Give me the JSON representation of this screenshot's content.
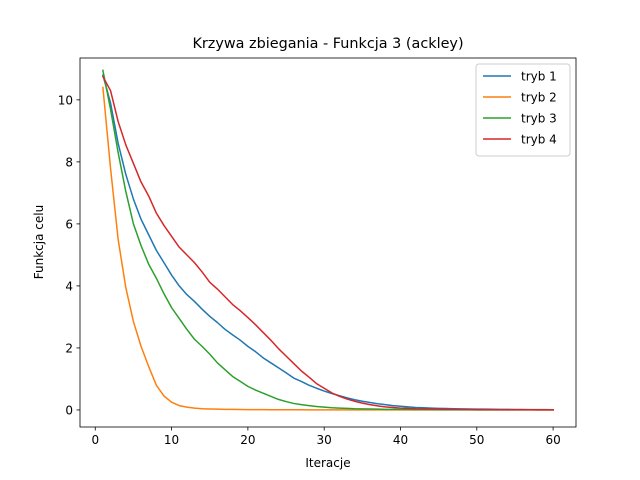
{
  "chart_data": {
    "type": "line",
    "title": "Krzywa zbiegania - Funkcja 3 (ackley)",
    "xlabel": "Iteracje",
    "ylabel": "Funkcja celu",
    "xlim": [
      -2,
      63
    ],
    "ylim": [
      -0.55,
      11.35
    ],
    "xticks": [
      0,
      10,
      20,
      30,
      40,
      50,
      60
    ],
    "yticks": [
      0,
      2,
      4,
      6,
      8,
      10
    ],
    "grid": false,
    "legend_position": "top-right",
    "x": [
      1,
      2,
      3,
      4,
      5,
      6,
      7,
      8,
      9,
      10,
      11,
      12,
      13,
      14,
      15,
      16,
      17,
      18,
      19,
      20,
      21,
      22,
      23,
      24,
      25,
      26,
      27,
      28,
      29,
      30,
      31,
      32,
      33,
      34,
      35,
      36,
      37,
      38,
      39,
      40,
      41,
      42,
      43,
      44,
      45,
      46,
      47,
      48,
      49,
      50,
      51,
      52,
      53,
      54,
      55,
      56,
      57,
      58,
      59,
      60
    ],
    "series": [
      {
        "name": "tryb 1",
        "color": "#1f77b4",
        "values": [
          10.8,
          9.9,
          8.6,
          7.6,
          6.8,
          6.15,
          5.65,
          5.15,
          4.75,
          4.35,
          4.0,
          3.72,
          3.5,
          3.25,
          3.02,
          2.82,
          2.6,
          2.42,
          2.25,
          2.05,
          1.88,
          1.68,
          1.52,
          1.36,
          1.2,
          1.03,
          0.92,
          0.8,
          0.7,
          0.61,
          0.53,
          0.46,
          0.39,
          0.33,
          0.28,
          0.24,
          0.2,
          0.17,
          0.14,
          0.12,
          0.1,
          0.08,
          0.07,
          0.06,
          0.05,
          0.045,
          0.04,
          0.035,
          0.03,
          0.028,
          0.025,
          0.022,
          0.02,
          0.018,
          0.016,
          0.014,
          0.012,
          0.01,
          0.009,
          0.008
        ]
      },
      {
        "name": "tryb 2",
        "color": "#ff7f0e",
        "values": [
          10.4,
          7.8,
          5.5,
          3.95,
          2.85,
          2.05,
          1.4,
          0.8,
          0.45,
          0.25,
          0.14,
          0.09,
          0.06,
          0.04,
          0.03,
          0.025,
          0.02,
          0.018,
          0.015,
          0.012,
          0.01,
          0.009,
          0.008,
          0.007,
          0.006,
          0.005,
          0.005,
          0.004,
          0.004,
          0.003,
          0.003,
          0.003,
          0.002,
          0.002,
          0.002,
          0.002,
          0.002,
          0.001,
          0.001,
          0.001,
          0.001,
          0.001,
          0.001,
          0.001,
          0.001,
          0.001,
          0.001,
          0.001,
          0.001,
          0.001,
          0.001,
          0.001,
          0.001,
          0.001,
          0.001,
          0.001,
          0.001,
          0.001,
          0.001,
          0.001
        ]
      },
      {
        "name": "tryb 3",
        "color": "#2ca02c",
        "values": [
          10.95,
          9.7,
          8.3,
          7.05,
          6.0,
          5.3,
          4.7,
          4.25,
          3.75,
          3.3,
          2.95,
          2.6,
          2.28,
          2.05,
          1.8,
          1.52,
          1.3,
          1.08,
          0.92,
          0.76,
          0.64,
          0.54,
          0.44,
          0.34,
          0.27,
          0.21,
          0.17,
          0.14,
          0.11,
          0.09,
          0.07,
          0.06,
          0.05,
          0.04,
          0.035,
          0.03,
          0.025,
          0.02,
          0.018,
          0.015,
          0.013,
          0.011,
          0.01,
          0.009,
          0.008,
          0.007,
          0.006,
          0.005,
          0.005,
          0.004,
          0.004,
          0.004,
          0.003,
          0.003,
          0.003,
          0.003,
          0.002,
          0.002,
          0.002,
          0.002
        ]
      },
      {
        "name": "tryb 4",
        "color": "#d62728",
        "values": [
          10.75,
          10.3,
          9.3,
          8.55,
          7.95,
          7.35,
          6.9,
          6.35,
          5.95,
          5.6,
          5.25,
          5.0,
          4.75,
          4.45,
          4.12,
          3.9,
          3.65,
          3.4,
          3.2,
          2.98,
          2.75,
          2.5,
          2.25,
          1.98,
          1.74,
          1.5,
          1.26,
          1.06,
          0.85,
          0.7,
          0.55,
          0.44,
          0.35,
          0.28,
          0.22,
          0.17,
          0.13,
          0.1,
          0.08,
          0.06,
          0.05,
          0.04,
          0.035,
          0.03,
          0.025,
          0.02,
          0.018,
          0.015,
          0.013,
          0.011,
          0.01,
          0.009,
          0.008,
          0.007,
          0.006,
          0.005,
          0.005,
          0.004,
          0.004,
          0.003
        ]
      }
    ]
  }
}
